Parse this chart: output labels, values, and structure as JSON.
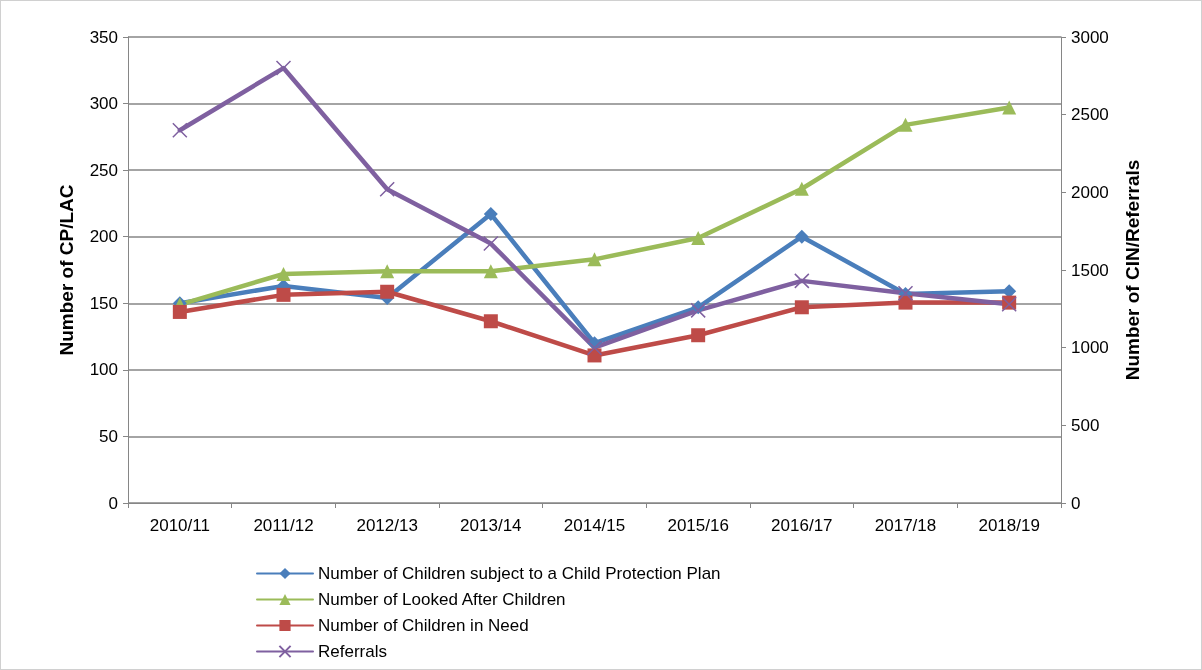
{
  "chart_data": {
    "type": "line",
    "ylabel": "Number of CP/LAC",
    "y2label": "Number of CIN/Referrals",
    "categories": [
      "2010/11",
      "2011/12",
      "2012/13",
      "2013/14",
      "2014/15",
      "2015/16",
      "2016/17",
      "2017/18",
      "2018/19"
    ],
    "series": [
      {
        "name": "Number of Children subject to a Child Protection Plan",
        "color": "#4a7ebb",
        "marker": "diamond",
        "values": [
          150,
          163,
          154,
          217,
          120,
          147,
          200,
          157,
          159
        ]
      },
      {
        "name": "Number of Looked After Children",
        "color": "#9bbb59",
        "marker": "triangle",
        "values": [
          149,
          172,
          174,
          174,
          183,
          199,
          236,
          284,
          297
        ]
      },
      {
        "name": "Number of Children in Need",
        "color": "#be4b48",
        "marker": "square",
        "axis": "y2",
        "values": [
          1230,
          1340,
          1360,
          1170,
          950,
          1080,
          1260,
          1290,
          1290
        ]
      },
      {
        "name": "Referrals",
        "color": "#7f60a0",
        "marker": "cross",
        "axis": "y2",
        "values": [
          2400,
          2800,
          2020,
          1670,
          1000,
          1240,
          1430,
          1350,
          1280
        ]
      }
    ],
    "ylim": [
      0,
      350
    ],
    "yticks": [
      0,
      50,
      100,
      150,
      200,
      250,
      300,
      350
    ],
    "y2lim": [
      0,
      3000
    ],
    "y2ticks": [
      0,
      500,
      1000,
      1500,
      2000,
      2500,
      3000
    ],
    "grid": "y",
    "legend": "bottom"
  }
}
